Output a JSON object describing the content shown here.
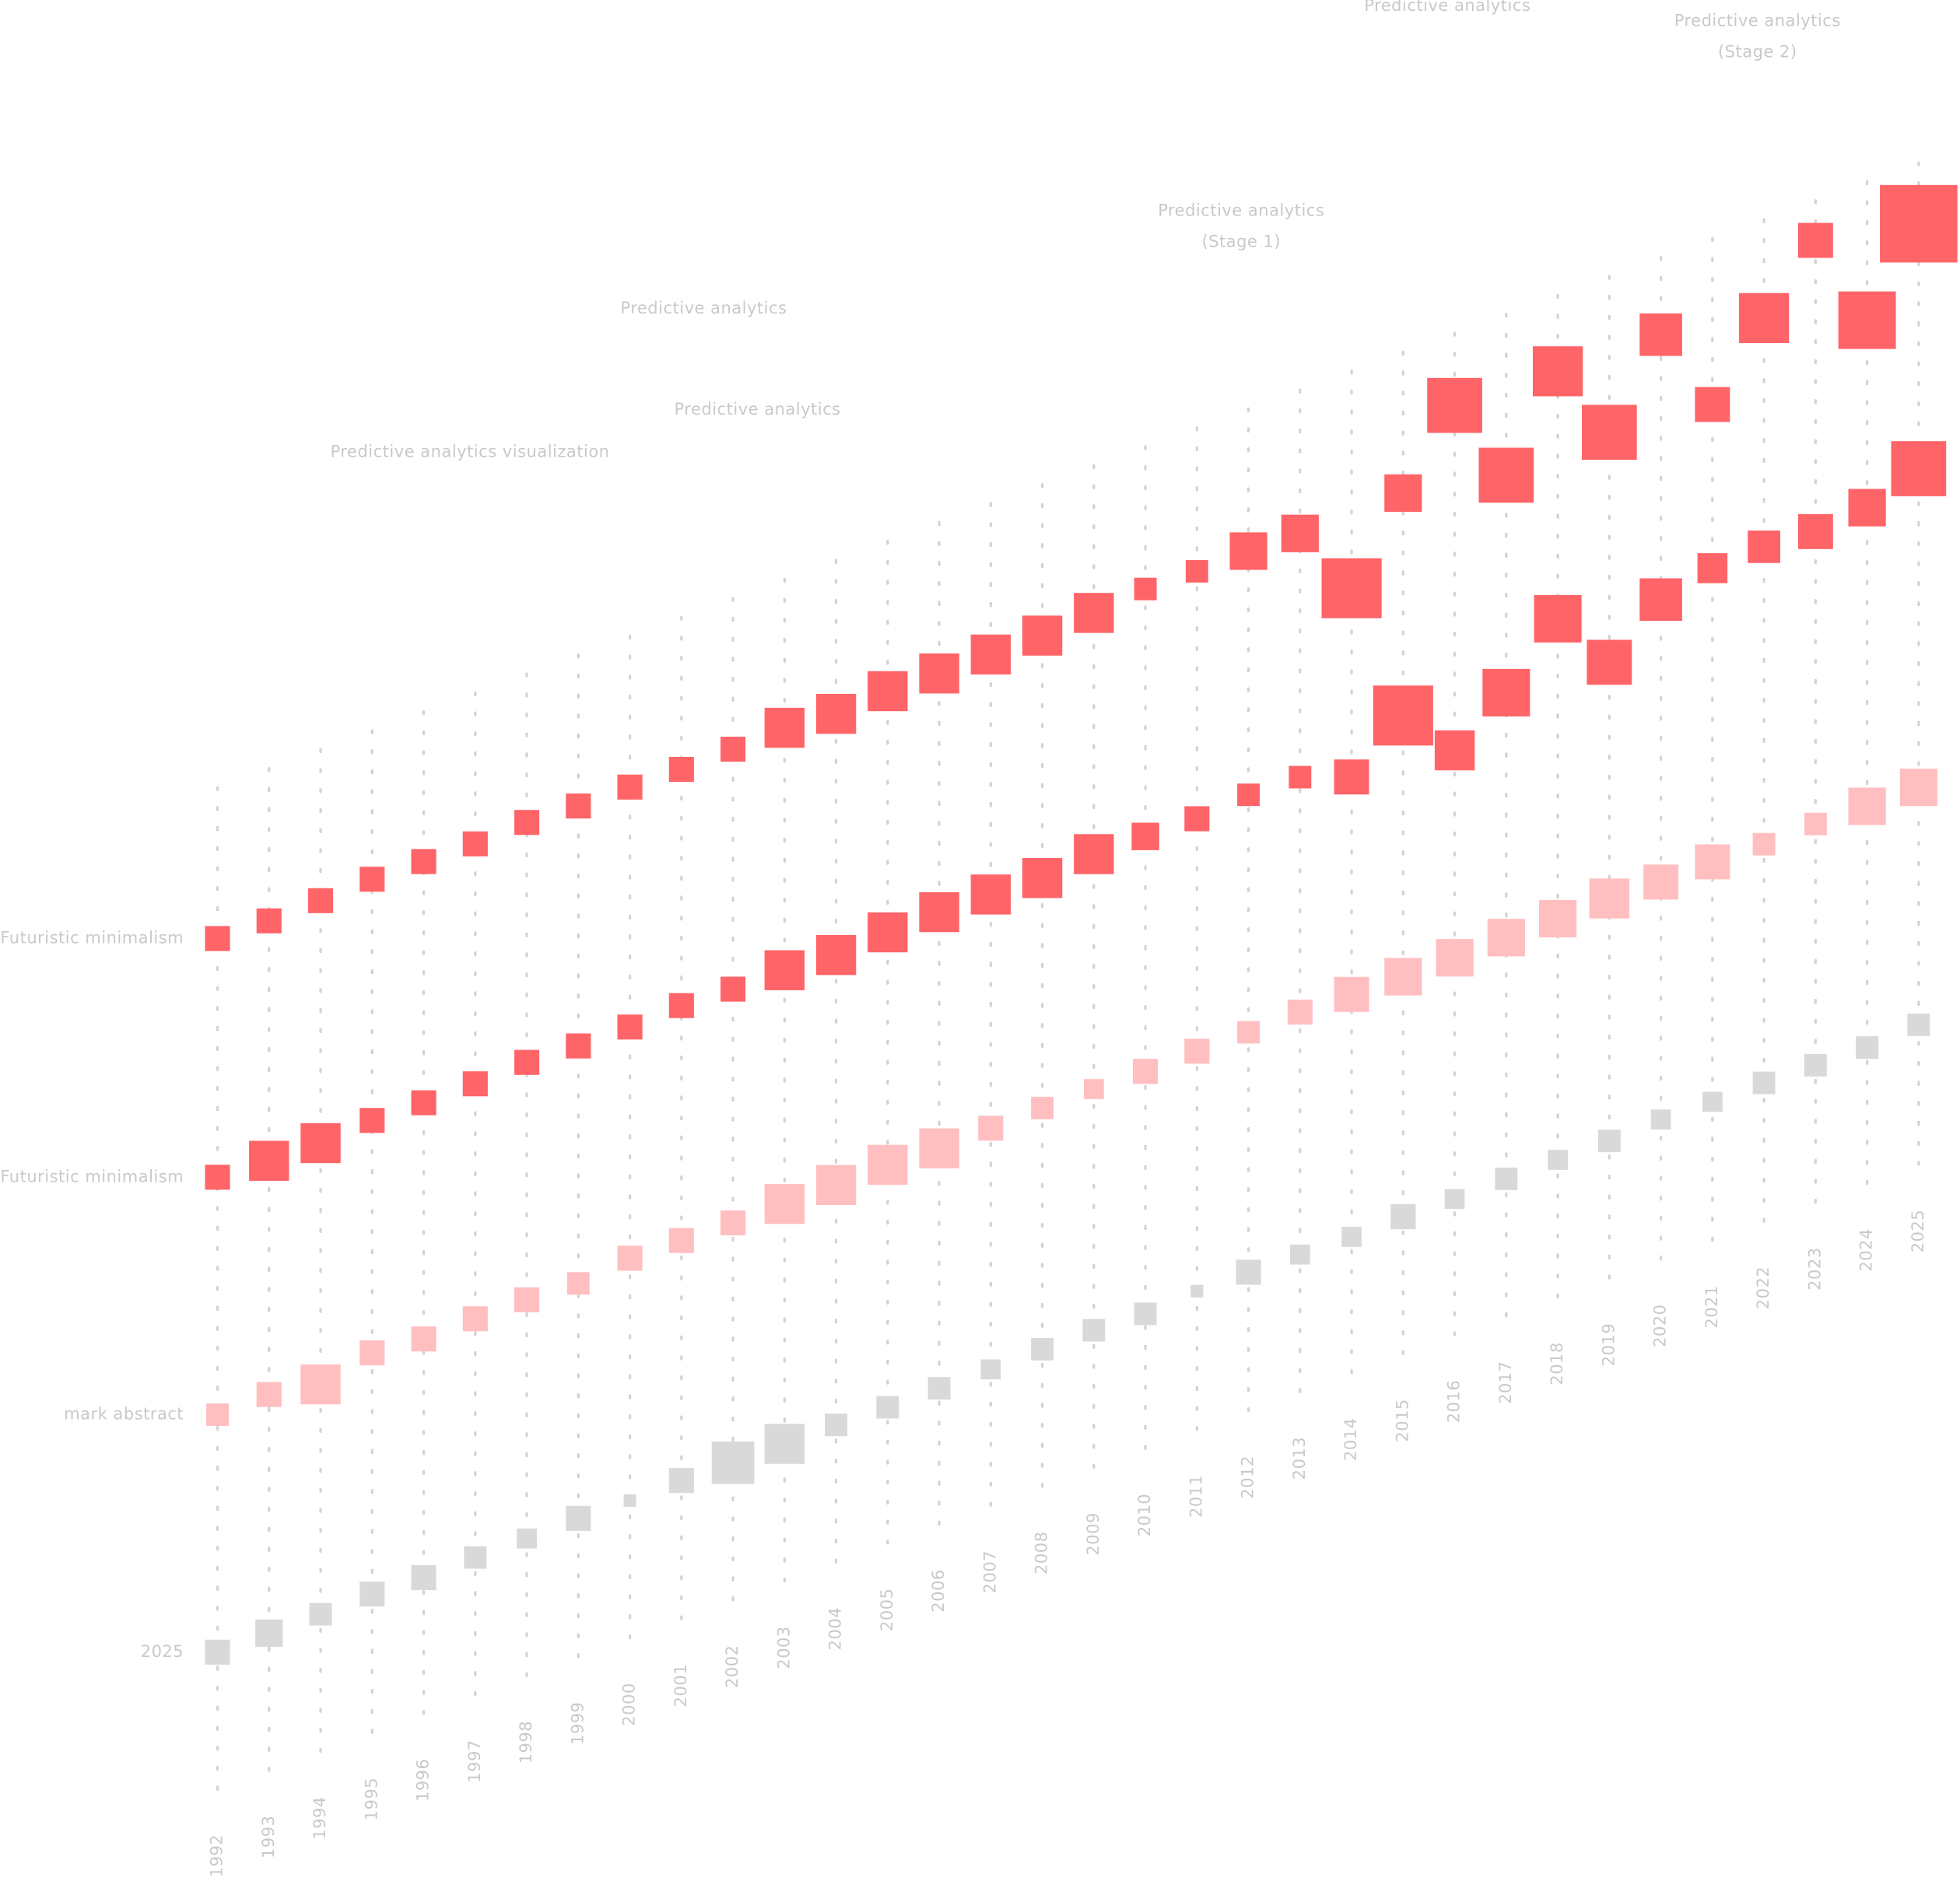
{
  "chart_data": {
    "type": "dot",
    "categories": [
      "1992",
      "1993",
      "1994",
      "1995",
      "1996",
      "1997",
      "1998",
      "1999",
      "2000",
      "2001",
      "2002",
      "2003",
      "2004",
      "2005",
      "2006",
      "2007",
      "2008",
      "2009",
      "2010",
      "2011",
      "2012",
      "2013",
      "2014",
      "2015",
      "2016",
      "2017",
      "2018",
      "2019",
      "2020",
      "2021",
      "2022",
      "2023",
      "2024",
      "2025"
    ],
    "series": [
      {
        "name": "Futuristic minimalism",
        "color": "#ff6468",
        "values": [
          734,
          733,
          734,
          736,
          735,
          734,
          736,
          734,
          734,
          733,
          734,
          736,
          732,
          735,
          734,
          734,
          734,
          737,
          741,
          740,
          741,
          740,
          681,
          742,
          797,
          726,
          794,
          730,
          793,
          722,
          776,
          823,
          744,
          806
        ],
        "sizes": [
          20,
          20,
          20,
          20,
          20,
          20,
          20,
          20,
          20,
          20,
          20,
          32,
          32,
          32,
          32,
          32,
          32,
          32,
          18,
          18,
          30,
          30,
          48,
          30,
          44,
          44,
          40,
          44,
          34,
          28,
          40,
          28,
          46,
          62
        ]
      },
      {
        "name": "Futuristic minimalism",
        "color": "#ff6468",
        "values": [
          543,
          541,
          540,
          543,
          542,
          542,
          544,
          542,
          542,
          544,
          542,
          542,
          539,
          542,
          543,
          542,
          540,
          544,
          543,
          542,
          546,
          545,
          530,
          564,
          521,
          552,
          596,
          546,
          581,
          591,
          593,
          590,
          594,
          610
        ],
        "sizes": [
          20,
          32,
          32,
          20,
          20,
          20,
          20,
          20,
          20,
          20,
          20,
          32,
          32,
          32,
          32,
          32,
          32,
          32,
          22,
          20,
          18,
          18,
          28,
          48,
          32,
          38,
          38,
          36,
          34,
          24,
          26,
          28,
          30,
          44
        ]
      },
      {
        "name": "mark abstract",
        "color": "#ffbfc1",
        "values": [
          353,
          354,
          347,
          357,
          353,
          354,
          354,
          352,
          357,
          356,
          355,
          355,
          355,
          356,
          354,
          355,
          356,
          356,
          355,
          356,
          356,
          357,
          356,
          355,
          355,
          356,
          356,
          357,
          355,
          356,
          355,
          356,
          355,
          355
        ],
        "sizes": [
          18,
          20,
          32,
          20,
          20,
          20,
          20,
          18,
          20,
          20,
          20,
          32,
          32,
          32,
          32,
          20,
          18,
          16,
          20,
          20,
          18,
          20,
          28,
          30,
          30,
          30,
          30,
          32,
          28,
          28,
          18,
          18,
          30,
          30
        ]
      },
      {
        "name": "2025",
        "color": "#d9d9d9",
        "values": [
          163,
          163,
          163,
          164,
          162,
          163,
          163,
          164,
          163,
          164,
          163,
          163,
          163,
          162,
          162,
          162,
          163,
          163,
          161,
          164,
          164,
          163,
          162,
          163,
          162,
          163,
          163,
          163,
          165,
          164,
          164,
          163,
          162,
          165
        ],
        "sizes": [
          20,
          22,
          18,
          20,
          20,
          18,
          16,
          20,
          10,
          20,
          34,
          32,
          18,
          18,
          18,
          16,
          18,
          18,
          18,
          10,
          20,
          16,
          16,
          20,
          16,
          18,
          16,
          18,
          16,
          16,
          18,
          18,
          18,
          18
        ]
      }
    ],
    "annotations": [
      {
        "lines": [
          "Predictive analytics visualization"
        ]
      },
      {
        "lines": [
          "Predictive analytics"
        ]
      },
      {
        "lines": [
          "Predictive analytics"
        ]
      },
      {
        "lines": [
          "Predictive analytics",
          "(Stage 1)"
        ]
      },
      {
        "lines": [
          "Predictive analytics"
        ]
      },
      {
        "lines": [
          "Predictive analytics",
          "(Stage 2)"
        ]
      }
    ]
  }
}
